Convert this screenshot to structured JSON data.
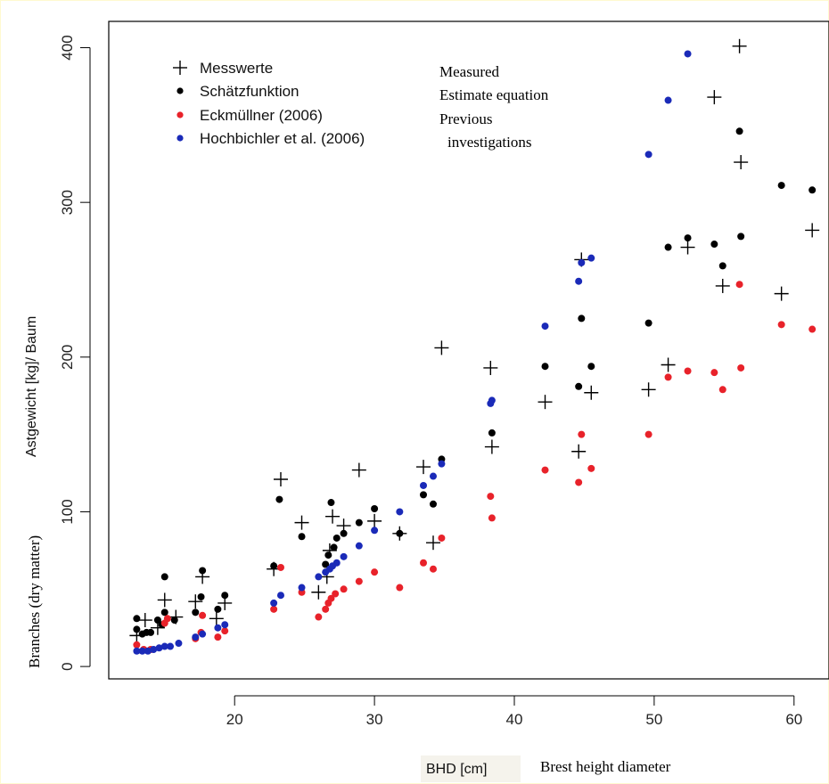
{
  "chart_data": {
    "type": "scatter",
    "xlabel": "BHD [cm]",
    "xlabel_annotation": "Brest height diameter",
    "ylabel": "Astgewicht [kg]/ Baum",
    "ylabel_annotation": "Branches (dry matter)",
    "xlim": [
      11,
      62.5
    ],
    "ylim": [
      -8,
      417
    ],
    "x_ticks": [
      20,
      30,
      40,
      50,
      60
    ],
    "y_ticks": [
      0,
      100,
      200,
      300,
      400
    ],
    "grid": false,
    "legend_position": "top-left",
    "legend_annotations": [
      "Measured",
      "Estimate equation",
      "Previous",
      "investigations"
    ],
    "series": [
      {
        "name": "Messwerte",
        "marker": "plus",
        "color": "#000000",
        "points": [
          [
            13,
            20
          ],
          [
            13.6,
            30
          ],
          [
            14.5,
            25
          ],
          [
            15,
            43
          ],
          [
            15.8,
            32
          ],
          [
            17.2,
            42
          ],
          [
            17.7,
            58
          ],
          [
            18.7,
            31
          ],
          [
            19.3,
            41
          ],
          [
            22.8,
            63
          ],
          [
            23.3,
            121
          ],
          [
            24.8,
            93
          ],
          [
            26,
            48
          ],
          [
            26.6,
            58
          ],
          [
            26.8,
            75
          ],
          [
            27,
            97
          ],
          [
            27.8,
            91
          ],
          [
            28.9,
            127
          ],
          [
            30,
            94
          ],
          [
            31.8,
            86
          ],
          [
            33.5,
            129
          ],
          [
            34.2,
            80
          ],
          [
            34.8,
            206
          ],
          [
            38.3,
            193
          ],
          [
            38.4,
            142
          ],
          [
            42.2,
            171
          ],
          [
            44.6,
            139
          ],
          [
            44.8,
            263
          ],
          [
            45.5,
            177
          ],
          [
            49.6,
            179
          ],
          [
            51,
            195
          ],
          [
            52.4,
            271
          ],
          [
            54.3,
            368
          ],
          [
            54.9,
            246
          ],
          [
            56.1,
            401
          ],
          [
            56.2,
            326
          ],
          [
            59.1,
            241
          ],
          [
            61.3,
            282
          ]
        ]
      },
      {
        "name": "Schätzfunktion",
        "marker": "dot",
        "color": "#000000",
        "points": [
          [
            13,
            24
          ],
          [
            13,
            31
          ],
          [
            13.4,
            21
          ],
          [
            13.7,
            22
          ],
          [
            14,
            22
          ],
          [
            14.5,
            30
          ],
          [
            14.8,
            27
          ],
          [
            15,
            58
          ],
          [
            15,
            35
          ],
          [
            15.7,
            30
          ],
          [
            17.2,
            35
          ],
          [
            17.6,
            45
          ],
          [
            17.7,
            62
          ],
          [
            18.8,
            37
          ],
          [
            19.3,
            46
          ],
          [
            22.8,
            65
          ],
          [
            23.2,
            108
          ],
          [
            24.8,
            84
          ],
          [
            26.5,
            66
          ],
          [
            26.7,
            72
          ],
          [
            26.9,
            106
          ],
          [
            27.1,
            77
          ],
          [
            27.3,
            83
          ],
          [
            27.8,
            86
          ],
          [
            28.9,
            93
          ],
          [
            30,
            102
          ],
          [
            31.8,
            86
          ],
          [
            33.5,
            111
          ],
          [
            34.2,
            105
          ],
          [
            34.8,
            134
          ],
          [
            38.4,
            151
          ],
          [
            42.2,
            194
          ],
          [
            44.6,
            181
          ],
          [
            44.8,
            225
          ],
          [
            45.5,
            194
          ],
          [
            49.6,
            222
          ],
          [
            51,
            271
          ],
          [
            52.4,
            277
          ],
          [
            54.3,
            273
          ],
          [
            54.9,
            259
          ],
          [
            56.1,
            346
          ],
          [
            56.2,
            278
          ],
          [
            59.1,
            311
          ],
          [
            61.3,
            308
          ]
        ]
      },
      {
        "name": "Eckmüllner (2006)",
        "marker": "dot",
        "color": "#e8222a",
        "points": [
          [
            13,
            14
          ],
          [
            13.5,
            11
          ],
          [
            14,
            11
          ],
          [
            15,
            28
          ],
          [
            15.2,
            31
          ],
          [
            17.2,
            18
          ],
          [
            17.6,
            22
          ],
          [
            17.7,
            33
          ],
          [
            18.8,
            19
          ],
          [
            19.3,
            23
          ],
          [
            22.8,
            37
          ],
          [
            23.3,
            64
          ],
          [
            24.8,
            48
          ],
          [
            26,
            32
          ],
          [
            26.5,
            37
          ],
          [
            26.7,
            41
          ],
          [
            26.9,
            44
          ],
          [
            27.2,
            47
          ],
          [
            27.8,
            50
          ],
          [
            28.9,
            55
          ],
          [
            30,
            61
          ],
          [
            31.8,
            51
          ],
          [
            33.5,
            67
          ],
          [
            34.2,
            63
          ],
          [
            34.8,
            83
          ],
          [
            38.3,
            110
          ],
          [
            38.4,
            96
          ],
          [
            42.2,
            127
          ],
          [
            44.6,
            119
          ],
          [
            44.8,
            150
          ],
          [
            45.5,
            128
          ],
          [
            49.6,
            150
          ],
          [
            51,
            187
          ],
          [
            52.4,
            191
          ],
          [
            54.3,
            190
          ],
          [
            54.9,
            179
          ],
          [
            56.1,
            247
          ],
          [
            56.2,
            193
          ],
          [
            59.1,
            221
          ],
          [
            61.3,
            218
          ]
        ]
      },
      {
        "name": "Hochbichler et al. (2006)",
        "marker": "dot",
        "color": "#1a2ab8",
        "points": [
          [
            13,
            10
          ],
          [
            13.4,
            10
          ],
          [
            13.8,
            10
          ],
          [
            14.2,
            11
          ],
          [
            14.6,
            12
          ],
          [
            15,
            13
          ],
          [
            15.4,
            13
          ],
          [
            16,
            15
          ],
          [
            17.2,
            19
          ],
          [
            17.7,
            21
          ],
          [
            18.8,
            25
          ],
          [
            19.3,
            27
          ],
          [
            22.8,
            41
          ],
          [
            23.3,
            46
          ],
          [
            24.8,
            51
          ],
          [
            26,
            58
          ],
          [
            26.5,
            61
          ],
          [
            26.8,
            63
          ],
          [
            27,
            65
          ],
          [
            27.3,
            67
          ],
          [
            27.8,
            71
          ],
          [
            28.9,
            78
          ],
          [
            30,
            88
          ],
          [
            31.8,
            100
          ],
          [
            33.5,
            117
          ],
          [
            34.2,
            123
          ],
          [
            34.8,
            131
          ],
          [
            38.3,
            170
          ],
          [
            38.4,
            172
          ],
          [
            42.2,
            220
          ],
          [
            44.6,
            249
          ],
          [
            44.8,
            261
          ],
          [
            45.5,
            264
          ],
          [
            49.6,
            331
          ],
          [
            51,
            366
          ],
          [
            52.4,
            396
          ]
        ]
      }
    ]
  }
}
